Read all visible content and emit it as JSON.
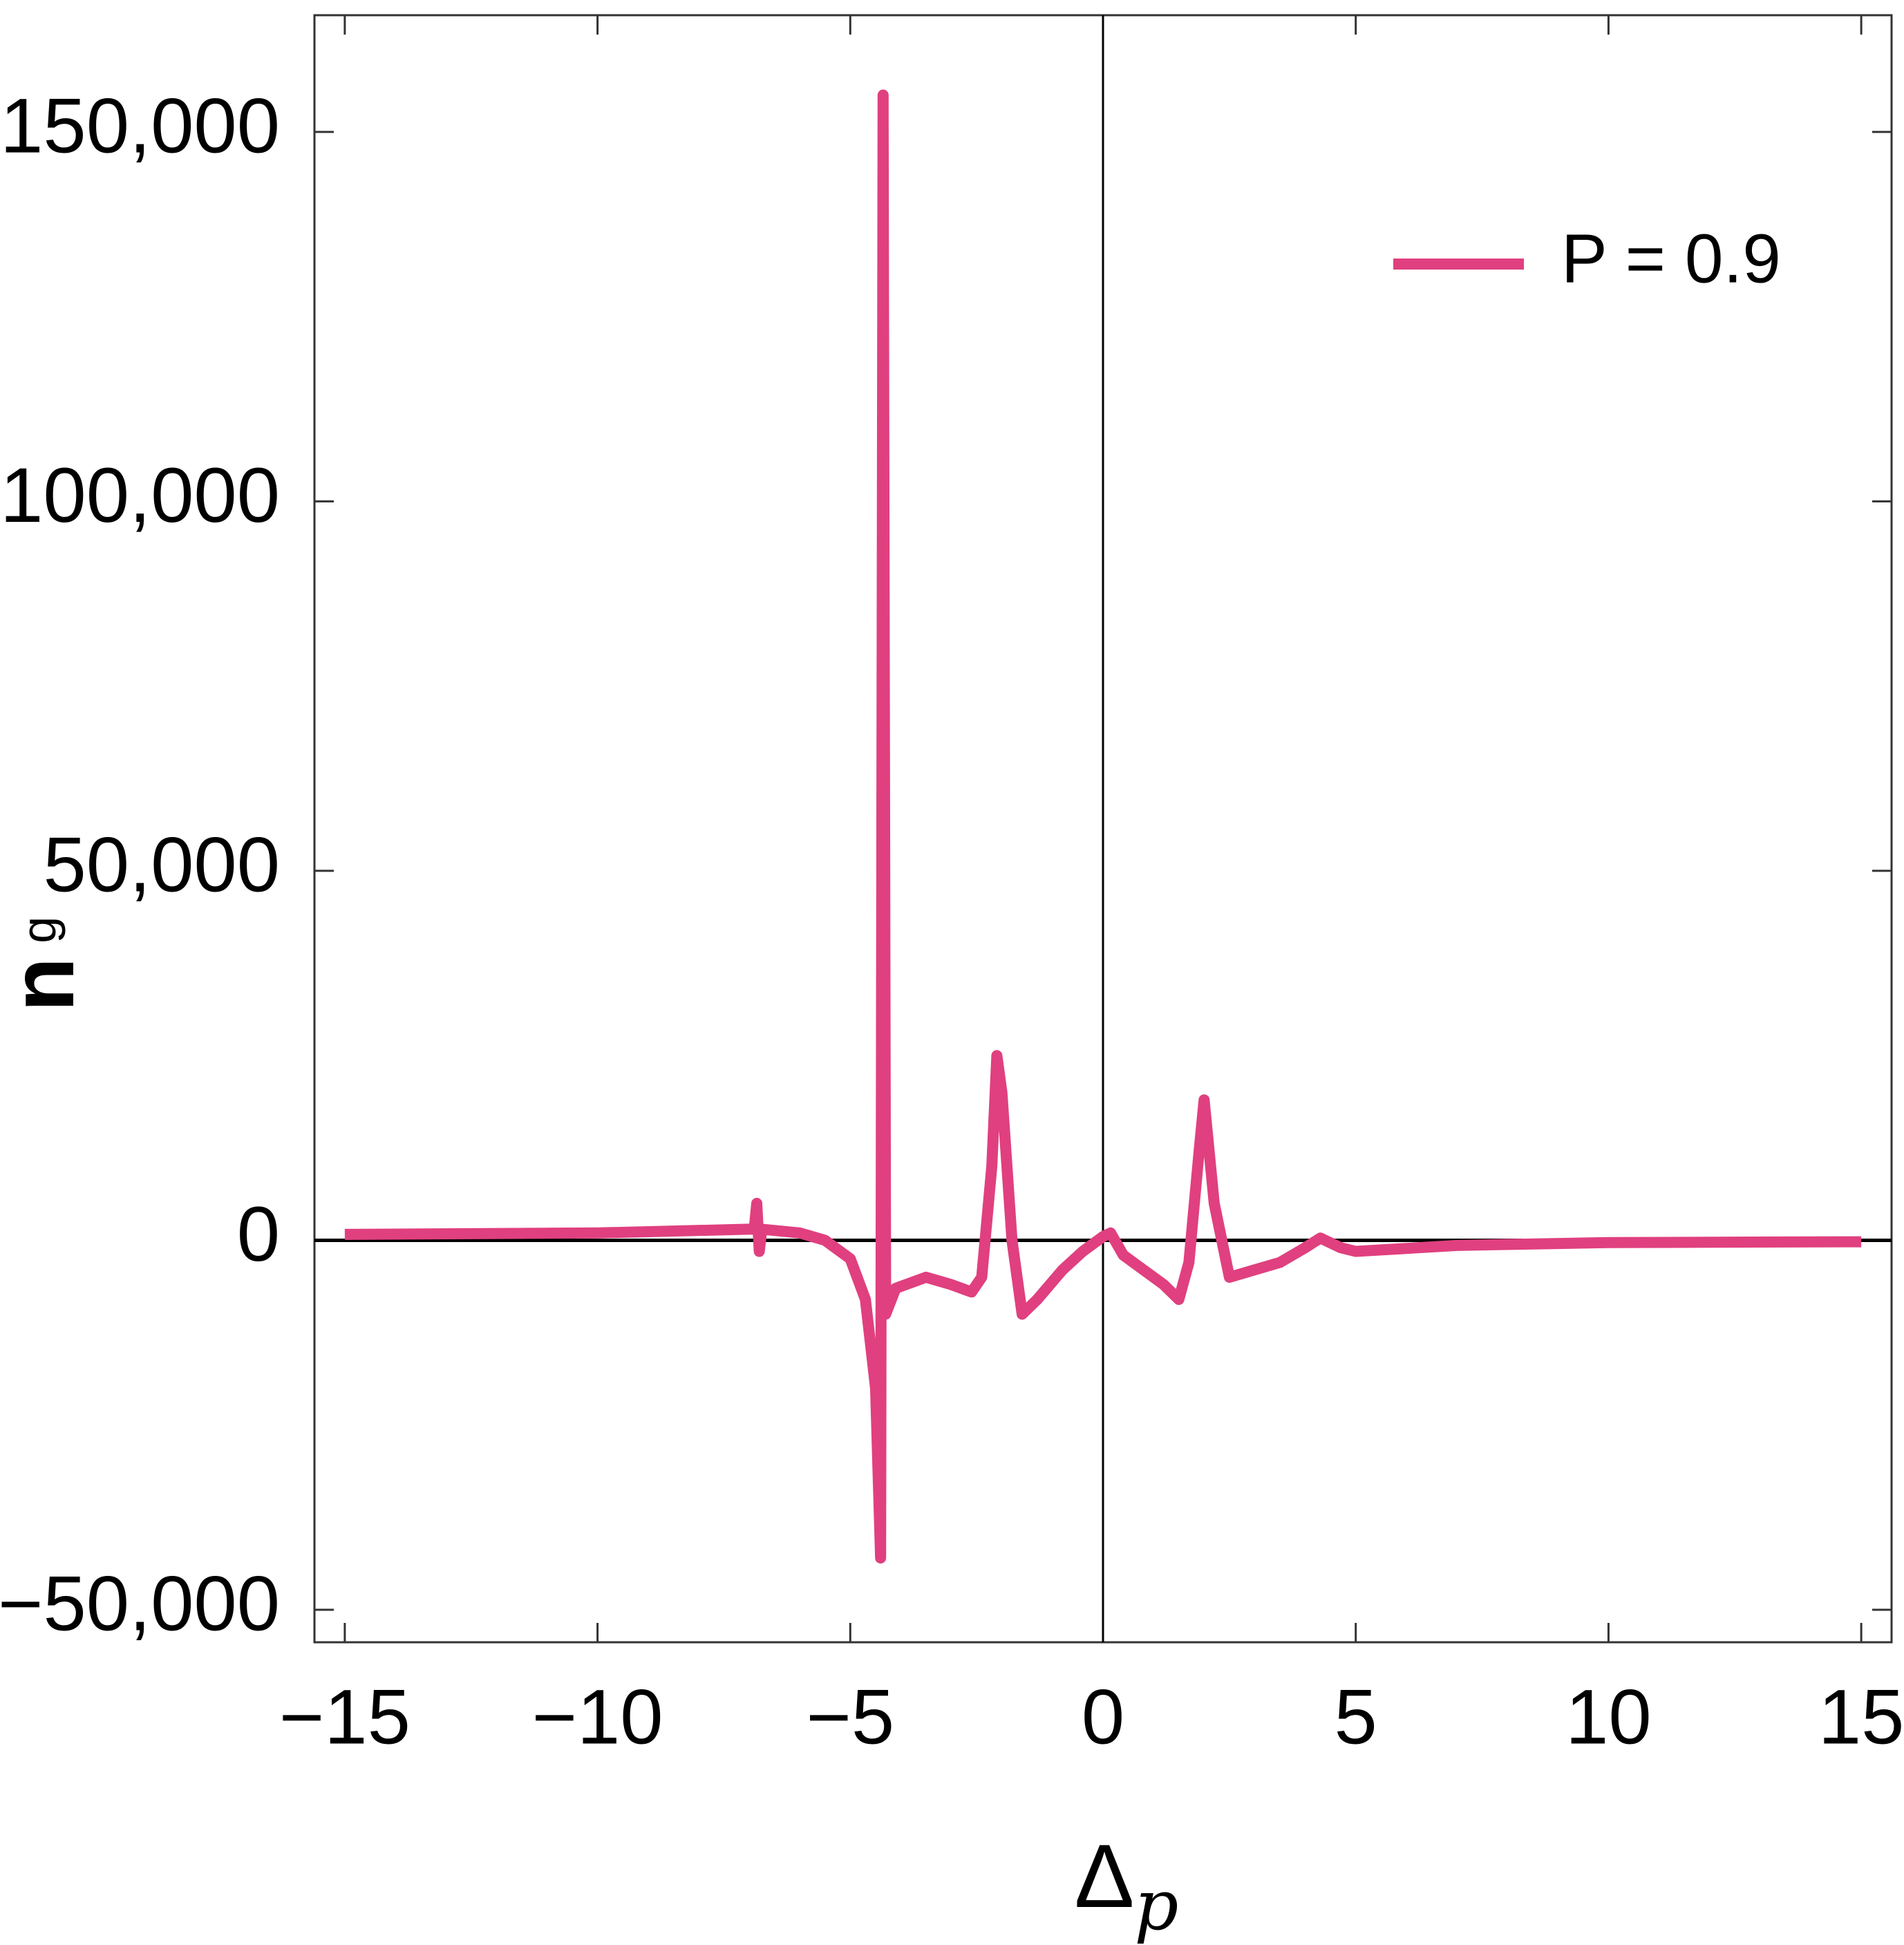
{
  "chart_data": {
    "type": "line",
    "x_label": {
      "main": "Δ",
      "sub": "p"
    },
    "y_label": {
      "main": "n",
      "sup": "g"
    },
    "x": [
      -15,
      -10,
      -7,
      -6.9,
      -6.85,
      -6.8,
      -6.75,
      -6,
      -5.5,
      -5,
      -4.7,
      -4.5,
      -4.4,
      -4.35,
      -4.3,
      -4.1,
      -3.5,
      -3,
      -2.6,
      -2.4,
      -2.2,
      -2.1,
      -2,
      -1.8,
      -1.6,
      -1.3,
      -0.8,
      -0.4,
      0,
      0.15,
      0.4,
      0.8,
      1.2,
      1.5,
      1.7,
      1.9,
      2,
      2.2,
      2.5,
      3,
      3.5,
      4,
      4.3,
      4.7,
      5,
      7,
      10,
      15
    ],
    "series": [
      {
        "name": "P = 0.9",
        "color": "#e0407f",
        "values": [
          800,
          1000,
          1500,
          1500,
          5000,
          -1500,
          1500,
          1000,
          0,
          -2500,
          -8000,
          -20000,
          -43000,
          155000,
          -10000,
          -6500,
          -5000,
          -6000,
          -7000,
          -5000,
          10000,
          25000,
          20000,
          0,
          -10000,
          -8000,
          -4000,
          -1500,
          500,
          1000,
          -2000,
          -4000,
          -6000,
          -8000,
          -3000,
          12000,
          19000,
          5000,
          -5000,
          -4000,
          -3000,
          -1000,
          300,
          -1000,
          -1500,
          -700,
          -300,
          -200
        ]
      }
    ],
    "xlim": [
      -15.6,
      15.6
    ],
    "ylim": [
      -54400,
      165800
    ],
    "xticks": [
      {
        "value": -15,
        "label": "−15"
      },
      {
        "value": -10,
        "label": "−10"
      },
      {
        "value": -5,
        "label": "−5"
      },
      0,
      5,
      10,
      15
    ],
    "yticks": [
      {
        "value": -50000,
        "label": "−50,000"
      },
      0,
      {
        "value": 50000,
        "label": "50,000"
      },
      {
        "value": 100000,
        "label": "100,000"
      },
      {
        "value": 150000,
        "label": "150,000"
      }
    ],
    "legend": "upper right",
    "legend_text_color": "#d03030"
  }
}
